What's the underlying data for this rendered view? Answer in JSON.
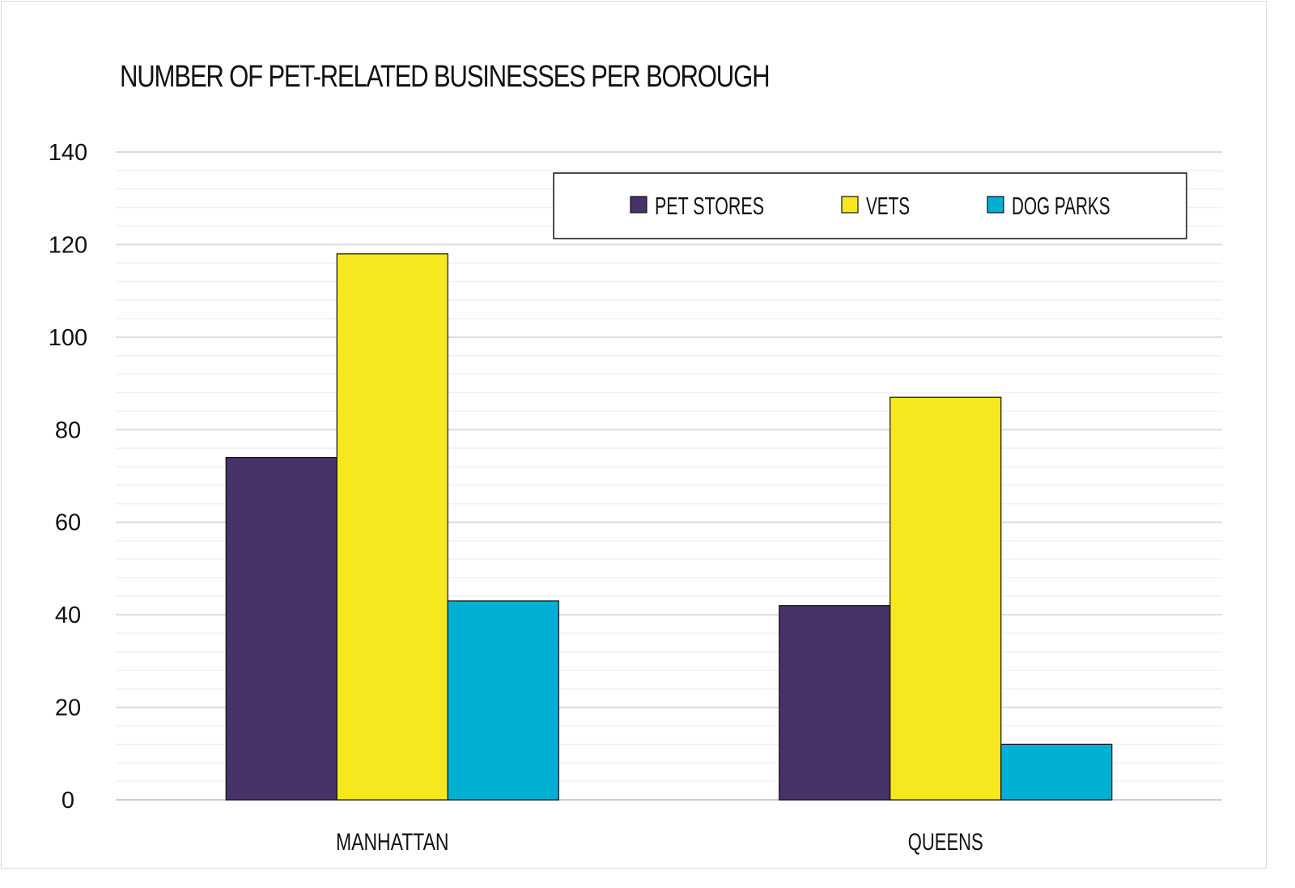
{
  "chart_data": {
    "type": "bar",
    "title": "NUMBER OF PET-RELATED BUSINESSES PER BOROUGH",
    "xlabel": "",
    "ylabel": "",
    "ylim": [
      0,
      140
    ],
    "yticks": [
      0,
      20,
      40,
      60,
      80,
      100,
      120,
      140
    ],
    "minor_step": 4,
    "categories": [
      "MANHATTAN",
      "QUEENS"
    ],
    "series": [
      {
        "name": "PET STORES",
        "color": "#47326a",
        "values": [
          74,
          42
        ]
      },
      {
        "name": "VETS",
        "color": "#f7e71e",
        "values": [
          118,
          87
        ]
      },
      {
        "name": "DOG PARKS",
        "color": "#00b0d3",
        "values": [
          43,
          12
        ]
      }
    ],
    "legend": "top-right",
    "grid": true
  }
}
